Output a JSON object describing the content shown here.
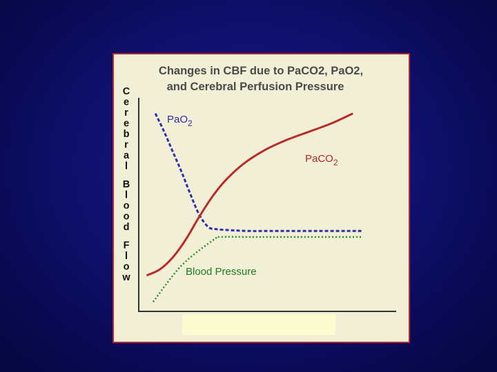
{
  "chart_data": {
    "type": "line",
    "title": "Changes in CBF due to PaCO2, PaO2,\nand Cerebral Perfusion Pressure",
    "title_lines": [
      "Changes in CBF due to PaCO2, PaO2,",
      "and Cerebral Perfusion Pressure"
    ],
    "xlabel": "",
    "ylabel": "Cerebral Blood Flow",
    "ylabel_words": [
      "Cerebral",
      "Blood",
      "Flow"
    ],
    "xlim": [
      0,
      100
    ],
    "ylim": [
      0,
      100
    ],
    "grid": false,
    "series": [
      {
        "name": "PaO2",
        "label_main": "PaO",
        "label_sub": "2",
        "color": "#2e2eb0",
        "style": "dashed",
        "x": [
          6,
          10,
          14,
          18,
          22,
          26,
          30,
          33,
          38,
          48,
          60,
          80,
          100
        ],
        "y": [
          95,
          86,
          76,
          66,
          55,
          45,
          39,
          38,
          37.5,
          37,
          37,
          37,
          37
        ]
      },
      {
        "name": "PaCO2",
        "label_main": "PaCO",
        "label_sub": "2",
        "color": "#bb2a2a",
        "style": "solid",
        "x": [
          2,
          8,
          14,
          20,
          26,
          32,
          38,
          46,
          56,
          66,
          76,
          86,
          96
        ],
        "y": [
          15,
          18,
          24,
          33,
          44,
          54,
          62,
          70,
          77,
          82,
          86,
          90,
          95
        ]
      },
      {
        "name": "Blood Pressure",
        "label_main": "Blood Pressure",
        "label_sub": "",
        "color": "#2a8a2a",
        "style": "dotted",
        "x": [
          5,
          18,
          33,
          36,
          50,
          70,
          100
        ],
        "y": [
          2,
          20,
          33,
          34,
          34,
          34,
          34
        ]
      }
    ]
  },
  "colors": {
    "panel_background": "#f1f0d6",
    "panel_border": "#b8282c",
    "axis": "#333333",
    "slide_background": "#0f0f6a"
  }
}
